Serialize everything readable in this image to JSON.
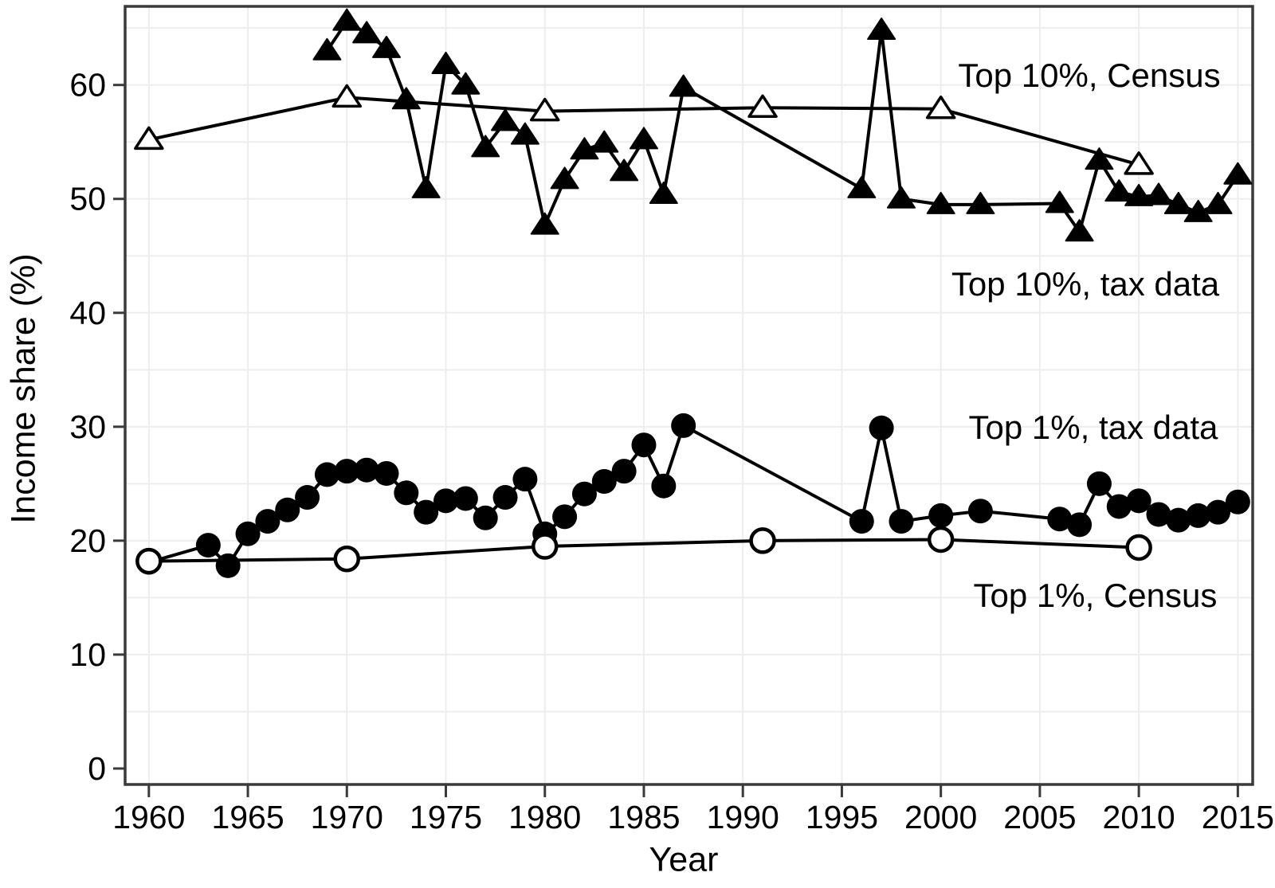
{
  "figure": {
    "background": "#ffffff",
    "frame_color": "#3a3a3a",
    "grid_color": "#ededed",
    "series_color": "#000000"
  },
  "chart_data": {
    "type": "line",
    "title": "",
    "xlabel": "Year",
    "ylabel": "Income share (%)",
    "xlim": [
      1958.8,
      2015.75
    ],
    "ylim": [
      -1.4,
      66.9
    ],
    "x_ticks": [
      1960,
      1965,
      1970,
      1975,
      1980,
      1985,
      1990,
      1995,
      2000,
      2005,
      2010,
      2015
    ],
    "y_ticks": [
      0,
      10,
      20,
      30,
      40,
      50,
      60
    ],
    "grid": {
      "step_x_years": 5,
      "step_y_units": 5,
      "on": true
    },
    "legend_position": "inline-annotations",
    "series": [
      {
        "name": "Top 10%, tax data",
        "marker": "triangle-filled",
        "x": [
          1969,
          1970,
          1971,
          1972,
          1973,
          1974,
          1975,
          1976,
          1977,
          1978,
          1979,
          1980,
          1981,
          1982,
          1983,
          1984,
          1985,
          1986,
          1987,
          1996,
          1997,
          1998,
          2000,
          2002,
          2006,
          2007,
          2008,
          2009,
          2010,
          2011,
          2012,
          2013,
          2014,
          2015
        ],
        "y": [
          63.0,
          65.6,
          64.5,
          63.2,
          58.7,
          50.9,
          61.8,
          60.0,
          54.5,
          56.8,
          55.6,
          47.7,
          51.7,
          54.3,
          54.9,
          52.4,
          55.2,
          50.4,
          59.8,
          50.9,
          64.8,
          50.0,
          49.5,
          49.5,
          49.6,
          47.1,
          53.4,
          50.6,
          50.2,
          50.3,
          49.5,
          48.8,
          49.5,
          52.1
        ]
      },
      {
        "name": "Top 10%, Census",
        "marker": "triangle-open",
        "x": [
          1960,
          1970,
          1980,
          1991,
          2000,
          2010
        ],
        "y": [
          55.2,
          58.9,
          57.7,
          58.0,
          57.9,
          53.0
        ]
      },
      {
        "name": "Top 1%, tax data",
        "marker": "circle-filled",
        "x": [
          1960,
          1963,
          1964,
          1965,
          1966,
          1967,
          1968,
          1969,
          1970,
          1971,
          1972,
          1973,
          1974,
          1975,
          1976,
          1977,
          1978,
          1979,
          1980,
          1981,
          1982,
          1983,
          1984,
          1985,
          1986,
          1987,
          1996,
          1997,
          1998,
          2000,
          2002,
          2006,
          2007,
          2008,
          2009,
          2010,
          2011,
          2012,
          2013,
          2014,
          2015
        ],
        "y": [
          18.1,
          19.6,
          17.8,
          20.6,
          21.7,
          22.7,
          23.8,
          25.8,
          26.1,
          26.2,
          25.9,
          24.2,
          22.5,
          23.5,
          23.7,
          22.0,
          23.8,
          25.4,
          20.6,
          22.1,
          24.1,
          25.2,
          26.1,
          28.4,
          24.8,
          30.1,
          21.7,
          29.9,
          21.7,
          22.2,
          22.6,
          21.9,
          21.4,
          25.0,
          23.0,
          23.5,
          22.3,
          21.8,
          22.2,
          22.5,
          23.4
        ]
      },
      {
        "name": "Top 1%, Census",
        "marker": "circle-open",
        "x": [
          1960,
          1970,
          1980,
          1991,
          2000,
          2010
        ],
        "y": [
          18.2,
          18.4,
          19.5,
          20.0,
          20.1,
          19.4
        ]
      }
    ],
    "annotations": [
      {
        "text": "Top 10%, Census",
        "x": 2007.5,
        "y": 60.8
      },
      {
        "text": "Top 10%, tax data",
        "x": 2007.3,
        "y": 42.5
      },
      {
        "text": "Top 1%, tax data",
        "x": 2007.7,
        "y": 29.9
      },
      {
        "text": "Top 1%, Census",
        "x": 2007.8,
        "y": 15.2
      }
    ]
  }
}
